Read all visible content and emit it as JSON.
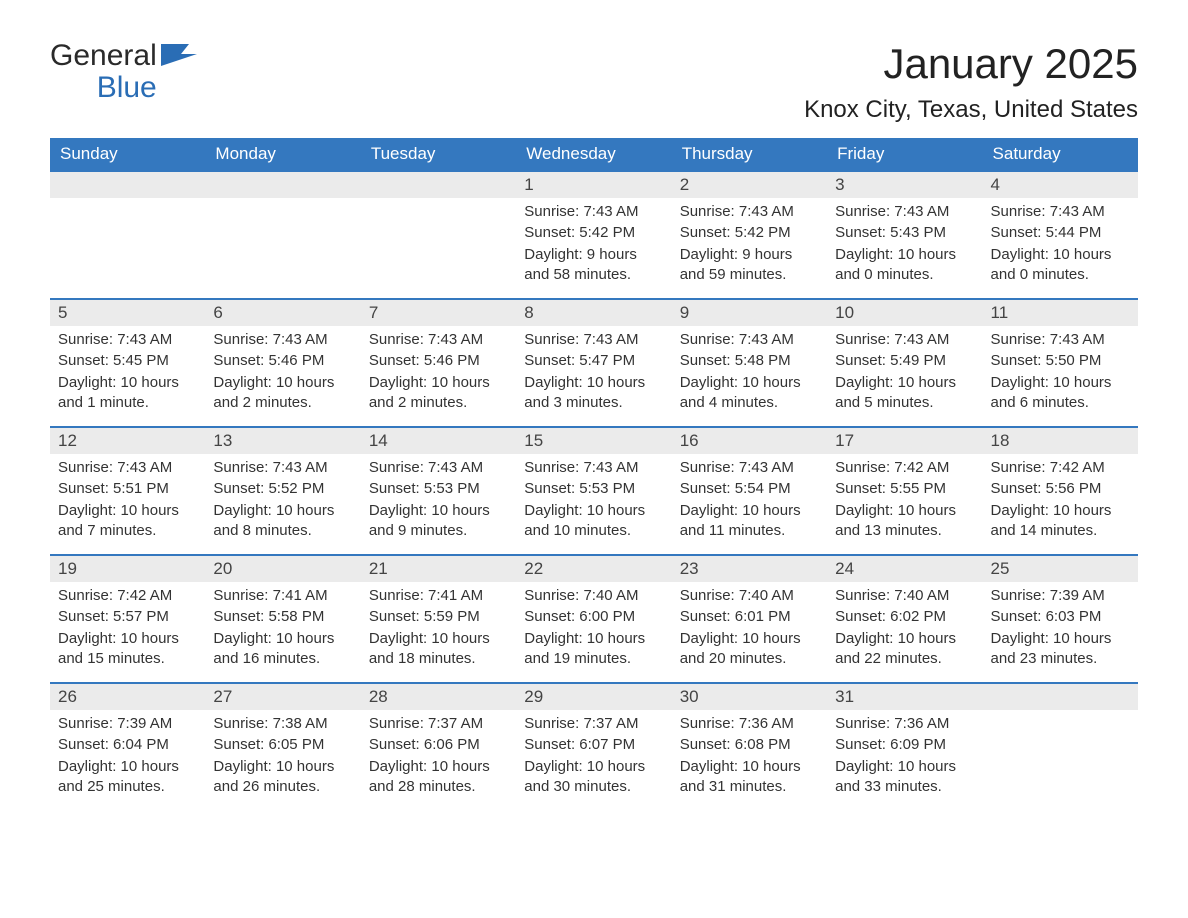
{
  "logo": {
    "text1": "General",
    "text2": "Blue",
    "icon_color": "#2a6db5"
  },
  "title": "January 2025",
  "location": "Knox City, Texas, United States",
  "header_bg": "#3478bf",
  "header_fg": "#ffffff",
  "daynum_bg": "#ebebeb",
  "text_color": "#333333",
  "border_color": "#3478bf",
  "days_of_week": [
    "Sunday",
    "Monday",
    "Tuesday",
    "Wednesday",
    "Thursday",
    "Friday",
    "Saturday"
  ],
  "weeks": [
    [
      null,
      null,
      null,
      {
        "n": "1",
        "sunrise": "Sunrise: 7:43 AM",
        "sunset": "Sunset: 5:42 PM",
        "daylight": "Daylight: 9 hours and 58 minutes."
      },
      {
        "n": "2",
        "sunrise": "Sunrise: 7:43 AM",
        "sunset": "Sunset: 5:42 PM",
        "daylight": "Daylight: 9 hours and 59 minutes."
      },
      {
        "n": "3",
        "sunrise": "Sunrise: 7:43 AM",
        "sunset": "Sunset: 5:43 PM",
        "daylight": "Daylight: 10 hours and 0 minutes."
      },
      {
        "n": "4",
        "sunrise": "Sunrise: 7:43 AM",
        "sunset": "Sunset: 5:44 PM",
        "daylight": "Daylight: 10 hours and 0 minutes."
      }
    ],
    [
      {
        "n": "5",
        "sunrise": "Sunrise: 7:43 AM",
        "sunset": "Sunset: 5:45 PM",
        "daylight": "Daylight: 10 hours and 1 minute."
      },
      {
        "n": "6",
        "sunrise": "Sunrise: 7:43 AM",
        "sunset": "Sunset: 5:46 PM",
        "daylight": "Daylight: 10 hours and 2 minutes."
      },
      {
        "n": "7",
        "sunrise": "Sunrise: 7:43 AM",
        "sunset": "Sunset: 5:46 PM",
        "daylight": "Daylight: 10 hours and 2 minutes."
      },
      {
        "n": "8",
        "sunrise": "Sunrise: 7:43 AM",
        "sunset": "Sunset: 5:47 PM",
        "daylight": "Daylight: 10 hours and 3 minutes."
      },
      {
        "n": "9",
        "sunrise": "Sunrise: 7:43 AM",
        "sunset": "Sunset: 5:48 PM",
        "daylight": "Daylight: 10 hours and 4 minutes."
      },
      {
        "n": "10",
        "sunrise": "Sunrise: 7:43 AM",
        "sunset": "Sunset: 5:49 PM",
        "daylight": "Daylight: 10 hours and 5 minutes."
      },
      {
        "n": "11",
        "sunrise": "Sunrise: 7:43 AM",
        "sunset": "Sunset: 5:50 PM",
        "daylight": "Daylight: 10 hours and 6 minutes."
      }
    ],
    [
      {
        "n": "12",
        "sunrise": "Sunrise: 7:43 AM",
        "sunset": "Sunset: 5:51 PM",
        "daylight": "Daylight: 10 hours and 7 minutes."
      },
      {
        "n": "13",
        "sunrise": "Sunrise: 7:43 AM",
        "sunset": "Sunset: 5:52 PM",
        "daylight": "Daylight: 10 hours and 8 minutes."
      },
      {
        "n": "14",
        "sunrise": "Sunrise: 7:43 AM",
        "sunset": "Sunset: 5:53 PM",
        "daylight": "Daylight: 10 hours and 9 minutes."
      },
      {
        "n": "15",
        "sunrise": "Sunrise: 7:43 AM",
        "sunset": "Sunset: 5:53 PM",
        "daylight": "Daylight: 10 hours and 10 minutes."
      },
      {
        "n": "16",
        "sunrise": "Sunrise: 7:43 AM",
        "sunset": "Sunset: 5:54 PM",
        "daylight": "Daylight: 10 hours and 11 minutes."
      },
      {
        "n": "17",
        "sunrise": "Sunrise: 7:42 AM",
        "sunset": "Sunset: 5:55 PM",
        "daylight": "Daylight: 10 hours and 13 minutes."
      },
      {
        "n": "18",
        "sunrise": "Sunrise: 7:42 AM",
        "sunset": "Sunset: 5:56 PM",
        "daylight": "Daylight: 10 hours and 14 minutes."
      }
    ],
    [
      {
        "n": "19",
        "sunrise": "Sunrise: 7:42 AM",
        "sunset": "Sunset: 5:57 PM",
        "daylight": "Daylight: 10 hours and 15 minutes."
      },
      {
        "n": "20",
        "sunrise": "Sunrise: 7:41 AM",
        "sunset": "Sunset: 5:58 PM",
        "daylight": "Daylight: 10 hours and 16 minutes."
      },
      {
        "n": "21",
        "sunrise": "Sunrise: 7:41 AM",
        "sunset": "Sunset: 5:59 PM",
        "daylight": "Daylight: 10 hours and 18 minutes."
      },
      {
        "n": "22",
        "sunrise": "Sunrise: 7:40 AM",
        "sunset": "Sunset: 6:00 PM",
        "daylight": "Daylight: 10 hours and 19 minutes."
      },
      {
        "n": "23",
        "sunrise": "Sunrise: 7:40 AM",
        "sunset": "Sunset: 6:01 PM",
        "daylight": "Daylight: 10 hours and 20 minutes."
      },
      {
        "n": "24",
        "sunrise": "Sunrise: 7:40 AM",
        "sunset": "Sunset: 6:02 PM",
        "daylight": "Daylight: 10 hours and 22 minutes."
      },
      {
        "n": "25",
        "sunrise": "Sunrise: 7:39 AM",
        "sunset": "Sunset: 6:03 PM",
        "daylight": "Daylight: 10 hours and 23 minutes."
      }
    ],
    [
      {
        "n": "26",
        "sunrise": "Sunrise: 7:39 AM",
        "sunset": "Sunset: 6:04 PM",
        "daylight": "Daylight: 10 hours and 25 minutes."
      },
      {
        "n": "27",
        "sunrise": "Sunrise: 7:38 AM",
        "sunset": "Sunset: 6:05 PM",
        "daylight": "Daylight: 10 hours and 26 minutes."
      },
      {
        "n": "28",
        "sunrise": "Sunrise: 7:37 AM",
        "sunset": "Sunset: 6:06 PM",
        "daylight": "Daylight: 10 hours and 28 minutes."
      },
      {
        "n": "29",
        "sunrise": "Sunrise: 7:37 AM",
        "sunset": "Sunset: 6:07 PM",
        "daylight": "Daylight: 10 hours and 30 minutes."
      },
      {
        "n": "30",
        "sunrise": "Sunrise: 7:36 AM",
        "sunset": "Sunset: 6:08 PM",
        "daylight": "Daylight: 10 hours and 31 minutes."
      },
      {
        "n": "31",
        "sunrise": "Sunrise: 7:36 AM",
        "sunset": "Sunset: 6:09 PM",
        "daylight": "Daylight: 10 hours and 33 minutes."
      },
      null
    ]
  ]
}
